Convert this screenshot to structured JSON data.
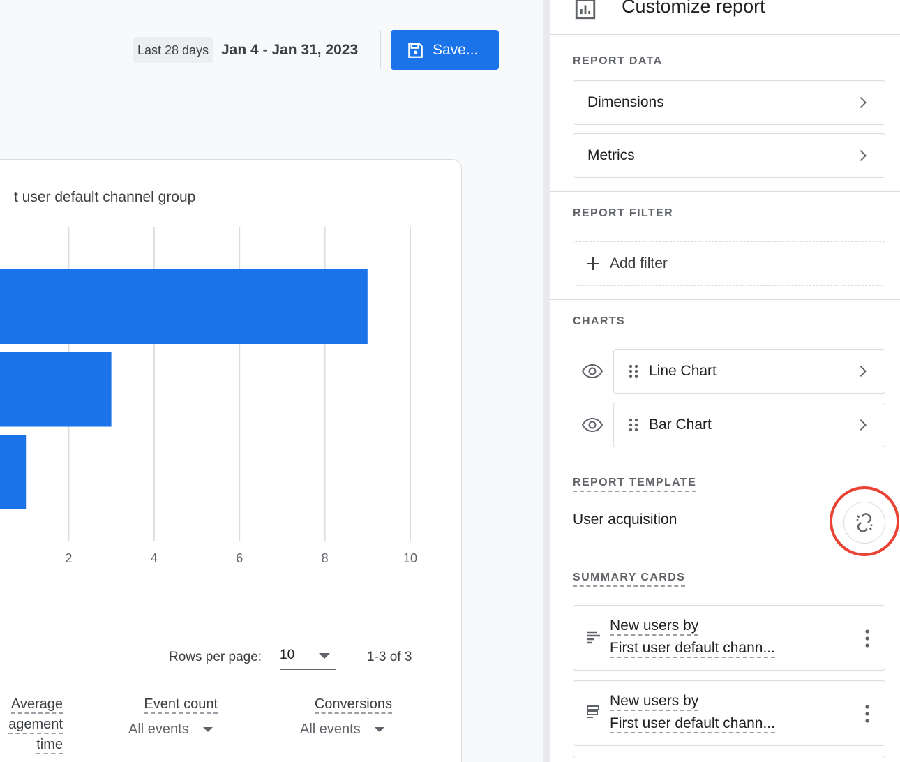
{
  "toolbar": {
    "date_chip": "Last 28 days",
    "date_range": "Jan 4 - Jan 31, 2023",
    "save_label": "Save..."
  },
  "card": {
    "title": "t user default channel group"
  },
  "chart_data": {
    "type": "bar",
    "orientation": "horizontal",
    "title": "",
    "categories": [
      "",
      "",
      ""
    ],
    "values": [
      9,
      3,
      1
    ],
    "xlim": [
      0,
      10
    ],
    "x_ticks": [
      "2",
      "4",
      "6",
      "8",
      "10"
    ],
    "grid": true,
    "bar_color": "#1a73e8"
  },
  "table": {
    "rows_per_page_label": "Rows per page:",
    "rows_per_page_value": "10",
    "pager": "1-3 of 3",
    "columns": [
      {
        "line1": "Average",
        "line2": "agement",
        "line3": "time"
      },
      {
        "line1": "Event count",
        "sub": "All events"
      },
      {
        "line1": "Conversions",
        "sub": "All events"
      }
    ]
  },
  "panel": {
    "title": "Customize report",
    "report_data_label": "REPORT DATA",
    "dimensions_label": "Dimensions",
    "metrics_label": "Metrics",
    "report_filter_label": "REPORT FILTER",
    "add_filter_label": "Add filter",
    "charts_label": "CHARTS",
    "charts": [
      {
        "label": "Line Chart"
      },
      {
        "label": "Bar Chart"
      }
    ],
    "report_template_label": "REPORT TEMPLATE",
    "template_name": "User acquisition",
    "summary_cards_label": "SUMMARY CARDS",
    "summary_cards": [
      {
        "line1": "New users by",
        "line2": "First user default chann..."
      },
      {
        "line1": "New users by",
        "line2": "First user default chann..."
      }
    ]
  }
}
